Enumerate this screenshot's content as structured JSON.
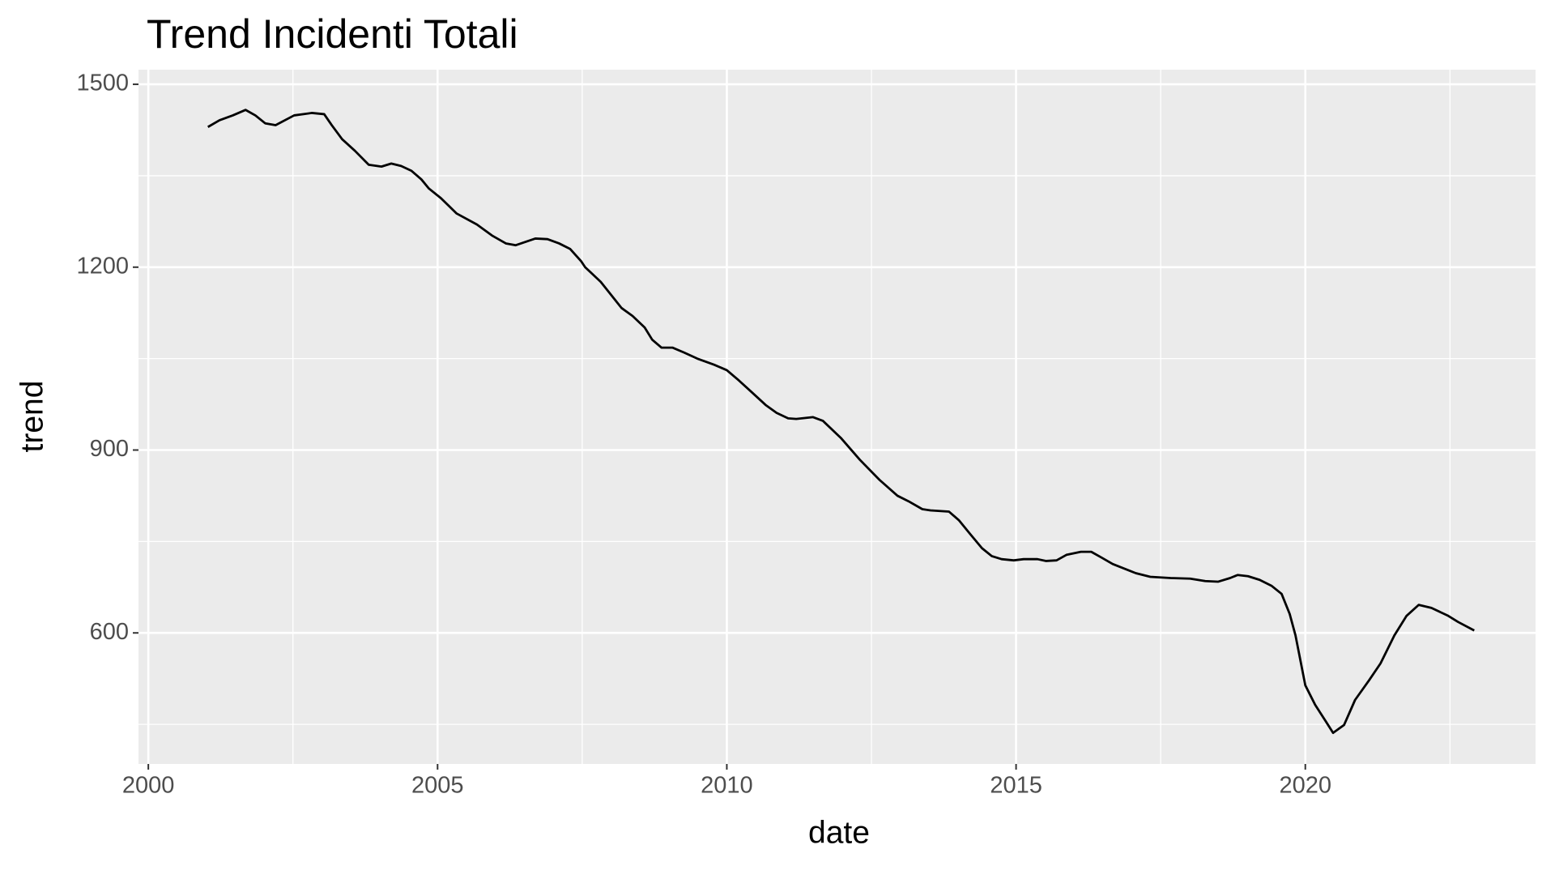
{
  "chart_data": {
    "type": "line",
    "title": "Trend Incidenti Totali",
    "x_label": "date",
    "y_label": "trend",
    "x": [
      2001.03,
      2001.23,
      2001.46,
      2001.68,
      2001.85,
      2002.02,
      2002.2,
      2002.52,
      2002.83,
      2003.04,
      2003.17,
      2003.35,
      2003.57,
      2003.81,
      2004.03,
      2004.2,
      2004.37,
      2004.55,
      2004.72,
      2004.85,
      2005.06,
      2005.33,
      2005.68,
      2005.94,
      2006.18,
      2006.35,
      2006.69,
      2006.9,
      2007.1,
      2007.29,
      2007.48,
      2007.55,
      2007.82,
      2008.18,
      2008.37,
      2008.58,
      2008.71,
      2008.87,
      2009.06,
      2009.26,
      2009.49,
      2009.78,
      2010.0,
      2010.21,
      2010.43,
      2010.67,
      2010.86,
      2011.06,
      2011.2,
      2011.49,
      2011.66,
      2011.97,
      2012.3,
      2012.64,
      2012.95,
      2013.14,
      2013.38,
      2013.52,
      2013.84,
      2014.01,
      2014.2,
      2014.41,
      2014.58,
      2014.75,
      2014.96,
      2015.13,
      2015.37,
      2015.52,
      2015.7,
      2015.87,
      2016.12,
      2016.3,
      2016.47,
      2016.67,
      2017.07,
      2017.32,
      2017.67,
      2018.01,
      2018.27,
      2018.49,
      2018.7,
      2018.83,
      2019.01,
      2019.21,
      2019.42,
      2019.59,
      2019.73,
      2019.83,
      2020.0,
      2020.17,
      2020.34,
      2020.48,
      2020.67,
      2020.86,
      2021.1,
      2021.3,
      2021.54,
      2021.75,
      2021.96,
      2022.18,
      2022.47,
      2022.64,
      2022.92
    ],
    "values": [
      1430,
      1441,
      1449,
      1458,
      1449,
      1436,
      1433,
      1449,
      1453,
      1451,
      1433,
      1410,
      1391,
      1368,
      1365,
      1370,
      1366,
      1358,
      1344,
      1329,
      1313,
      1288,
      1270,
      1252,
      1239,
      1236,
      1247,
      1246,
      1239,
      1230,
      1210,
      1200,
      1176,
      1133,
      1120,
      1101,
      1081,
      1068,
      1068,
      1060,
      1050,
      1040,
      1031,
      1014,
      995,
      974,
      961,
      952,
      951,
      954,
      948,
      920,
      884,
      851,
      825,
      816,
      803,
      801,
      799,
      785,
      763,
      739,
      726,
      721,
      719,
      721,
      721,
      718,
      719,
      728,
      733,
      733,
      724,
      713,
      698,
      692,
      690,
      689,
      685,
      684,
      690,
      695,
      693,
      687,
      677,
      664,
      631,
      596,
      514,
      482,
      457,
      436,
      449,
      490,
      522,
      550,
      596,
      628,
      646,
      641,
      628,
      618,
      604
    ],
    "color": "#000000",
    "xlim": [
      1999.83,
      2023.98
    ],
    "ylim": [
      385,
      1524
    ],
    "xticks": [
      2000,
      2005,
      2010,
      2015,
      2020
    ],
    "yticks": [
      600,
      900,
      1200,
      1500
    ],
    "xminor": [
      2002.5,
      2007.5,
      2012.5,
      2017.5,
      2022.5
    ],
    "yminor": [
      450,
      750,
      1050,
      1350
    ],
    "grid": true
  }
}
